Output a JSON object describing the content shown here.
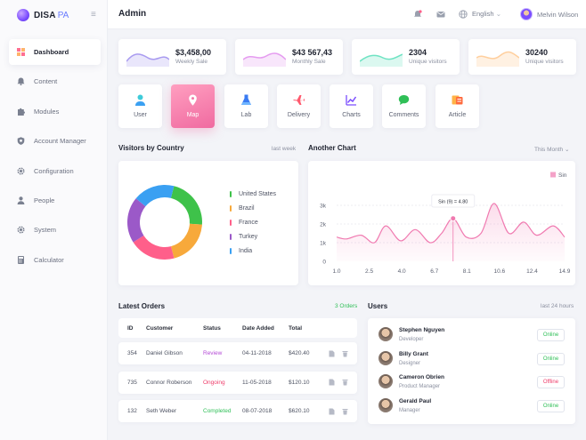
{
  "brand": {
    "name": "DISA",
    "suffix": "PA"
  },
  "sidebar": {
    "items": [
      {
        "label": "Dashboard",
        "icon": "dashboard-icon"
      },
      {
        "label": "Content",
        "icon": "bell-icon"
      },
      {
        "label": "Modules",
        "icon": "puzzle-icon"
      },
      {
        "label": "Account Manager",
        "icon": "shield-icon"
      },
      {
        "label": "Configuration",
        "icon": "gear-icon"
      },
      {
        "label": "People",
        "icon": "person-icon"
      },
      {
        "label": "System",
        "icon": "gear-icon"
      },
      {
        "label": "Calculator",
        "icon": "calculator-icon"
      }
    ]
  },
  "header": {
    "title": "Admin",
    "language": "English",
    "user": "Melvin Wilson"
  },
  "stats": [
    {
      "value": "$3,458,00",
      "label": "Weekly Sale",
      "color": "#a99bf0"
    },
    {
      "value": "$43 567,43",
      "label": "Monthly Sale",
      "color": "#e59cf0"
    },
    {
      "value": "2304",
      "label": "Unique visitors",
      "color": "#6fe3c3"
    },
    {
      "value": "30240",
      "label": "Unique visitors",
      "color": "#ffcf9e"
    }
  ],
  "tiles": [
    {
      "label": "User",
      "icon": "user-icon"
    },
    {
      "label": "Map",
      "icon": "map-pin-icon"
    },
    {
      "label": "Lab",
      "icon": "flask-icon"
    },
    {
      "label": "Delivery",
      "icon": "plane-icon"
    },
    {
      "label": "Charts",
      "icon": "chart-icon"
    },
    {
      "label": "Comments",
      "icon": "comment-icon"
    },
    {
      "label": "Article",
      "icon": "article-icon"
    }
  ],
  "visitors": {
    "title": "Visitors by Country",
    "period": "last week"
  },
  "chart_data": [
    {
      "type": "pie",
      "title": "Visitors by Country",
      "categories": [
        "United States",
        "Brazil",
        "France",
        "Turkey",
        "India"
      ],
      "values": [
        22,
        20,
        20,
        20,
        18
      ],
      "colors": [
        "#3ec24a",
        "#f7a93b",
        "#ff5f8a",
        "#9b59c8",
        "#3aa0f2"
      ]
    },
    {
      "type": "area",
      "title": "Another Chart",
      "series": [
        {
          "name": "Sin"
        }
      ],
      "x": [
        1.0,
        1.6,
        2.5,
        3.3,
        4.0,
        4.9,
        5.8,
        6.7,
        7.4,
        8.1,
        8.9,
        9.8,
        10.6,
        11.5,
        12.4,
        13.2,
        14.2,
        14.9
      ],
      "y": [
        1300,
        1200,
        1400,
        1000,
        1900,
        1100,
        1700,
        1000,
        1500,
        2300,
        1300,
        1500,
        3100,
        1500,
        2100,
        1400,
        1900,
        1300
      ],
      "x_ticks": [
        "1.0",
        "2.5",
        "4.0",
        "6.7",
        "8.1",
        "10.6",
        "12.4",
        "14.9"
      ],
      "y_ticks": [
        "0",
        "1k",
        "2k",
        "3k"
      ],
      "ylim": [
        0,
        3000
      ],
      "tooltip": "Sin (9) = 4.80"
    }
  ],
  "another": {
    "title": "Another Chart",
    "period": "This Month",
    "legend": "Sin"
  },
  "orders": {
    "title": "Latest Orders",
    "count": "3 Orders",
    "headers": [
      "ID",
      "Customer",
      "Status",
      "Date Added",
      "Total"
    ],
    "rows": [
      {
        "id": "354",
        "customer": "Daniel Gibson",
        "status": "Review",
        "status_color": "#b44ad6",
        "date": "04-11-2018",
        "total": "$420.40"
      },
      {
        "id": "735",
        "customer": "Connor Roberson",
        "status": "Ongoing",
        "status_color": "#ee3c6a",
        "date": "11-05-2018",
        "total": "$120.10"
      },
      {
        "id": "132",
        "customer": "Seth Weber",
        "status": "Completed",
        "status_color": "#2fbf57",
        "date": "08-07-2018",
        "total": "$620.10"
      }
    ]
  },
  "users": {
    "title": "Users",
    "period": "last 24 hours",
    "rows": [
      {
        "name": "Stephen Nguyen",
        "role": "Developer",
        "status": "Online",
        "color": "#2fbf57"
      },
      {
        "name": "Billy Grant",
        "role": "Designer",
        "status": "Online",
        "color": "#2fbf57"
      },
      {
        "name": "Cameron Obrien",
        "role": "Product Manager",
        "status": "Offline",
        "color": "#ee3c6a"
      },
      {
        "name": "Gerald Paul",
        "role": "Manager",
        "status": "Online",
        "color": "#2fbf57"
      }
    ]
  }
}
